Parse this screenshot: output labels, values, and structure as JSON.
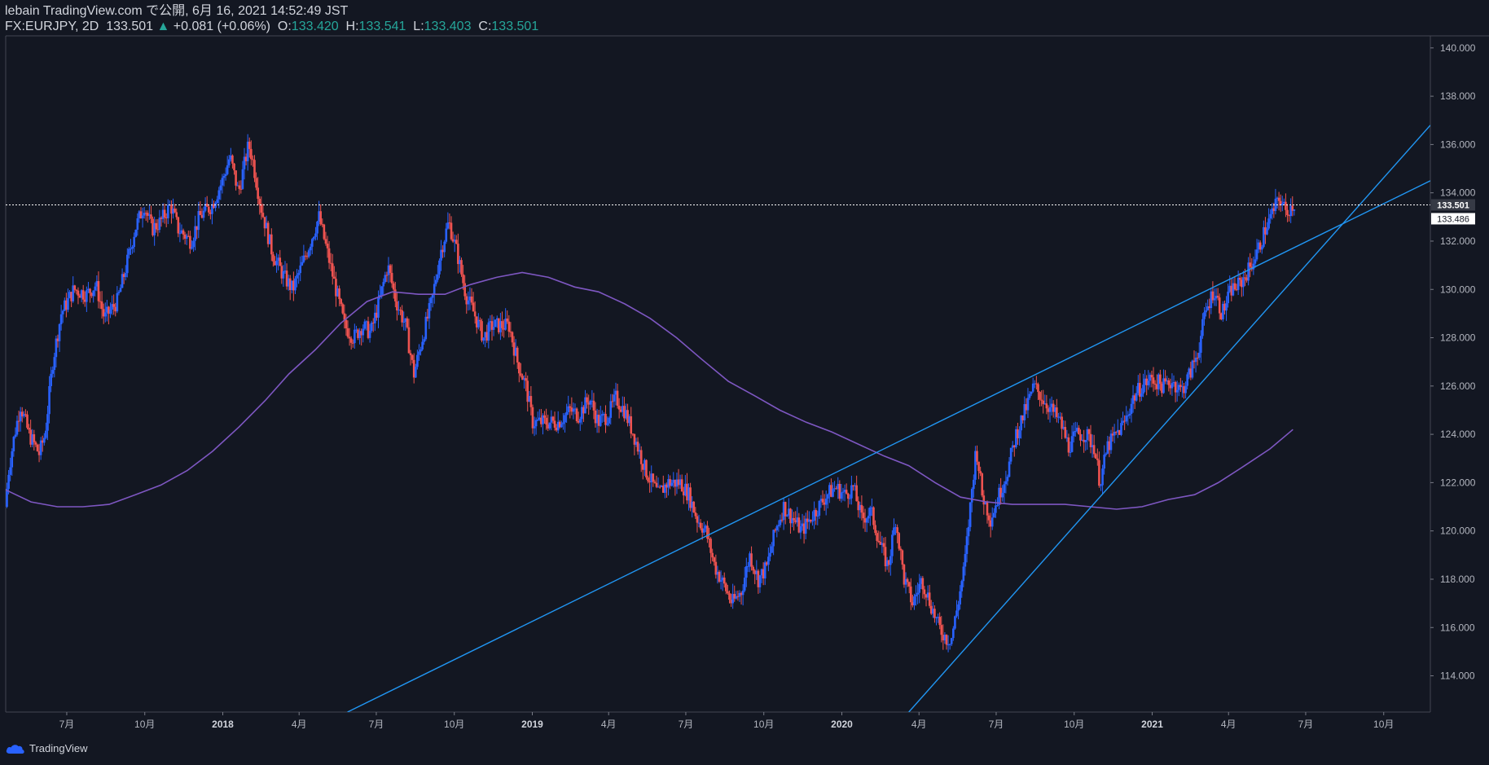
{
  "header": {
    "published": "lebain TradingView.com で公開, 6月 16, 2021 14:52:49 JST",
    "symbol": "FX:EURJPY, 2D",
    "last": "133.501",
    "change": "+0.081 (+0.06%)",
    "o_label": "O:",
    "o_value": "133.420",
    "h_label": "H:",
    "h_value": "133.541",
    "l_label": "L:",
    "l_value": "133.403",
    "c_label": "C:",
    "c_value": "133.501"
  },
  "brand": {
    "name": "TradingView",
    "icon": "tradingview-cloud-icon"
  },
  "colors": {
    "background": "#131722",
    "up": "#2962ff",
    "down": "#ef5350",
    "ma": "#7e57c2",
    "trendline": "#2196f3",
    "price_line": "#ffffff"
  },
  "chart_data": {
    "type": "candlestick",
    "symbol": "FX:EURJPY",
    "interval": "2D",
    "x_range": [
      "2017-04-20",
      "2021-11-25"
    ],
    "ylim": [
      112.5,
      140.5
    ],
    "y_ticks": [
      "114.000",
      "116.000",
      "118.000",
      "120.000",
      "122.000",
      "124.000",
      "126.000",
      "128.000",
      "130.000",
      "132.000",
      "134.000",
      "136.000",
      "138.000",
      "140.000"
    ],
    "x_ticks": [
      {
        "date": "2017-07-01",
        "label": "7月",
        "bold": false
      },
      {
        "date": "2017-10-01",
        "label": "10月",
        "bold": false
      },
      {
        "date": "2018-01-01",
        "label": "2018",
        "bold": true
      },
      {
        "date": "2018-04-01",
        "label": "4月",
        "bold": false
      },
      {
        "date": "2018-07-01",
        "label": "7月",
        "bold": false
      },
      {
        "date": "2018-10-01",
        "label": "10月",
        "bold": false
      },
      {
        "date": "2019-01-01",
        "label": "2019",
        "bold": true
      },
      {
        "date": "2019-04-01",
        "label": "4月",
        "bold": false
      },
      {
        "date": "2019-07-01",
        "label": "7月",
        "bold": false
      },
      {
        "date": "2019-10-01",
        "label": "10月",
        "bold": false
      },
      {
        "date": "2020-01-01",
        "label": "2020",
        "bold": true
      },
      {
        "date": "2020-04-01",
        "label": "4月",
        "bold": false
      },
      {
        "date": "2020-07-01",
        "label": "7月",
        "bold": false
      },
      {
        "date": "2020-10-01",
        "label": "10月",
        "bold": false
      },
      {
        "date": "2021-01-01",
        "label": "2021",
        "bold": true
      },
      {
        "date": "2021-04-01",
        "label": "4月",
        "bold": false
      },
      {
        "date": "2021-07-01",
        "label": "7月",
        "bold": false
      },
      {
        "date": "2021-10-01",
        "label": "10月",
        "bold": false
      }
    ],
    "price_anchors": [
      [
        "2017-04-20",
        121.0
      ],
      [
        "2017-04-24",
        122.5
      ],
      [
        "2017-05-01",
        124.0
      ],
      [
        "2017-05-08",
        125.2
      ],
      [
        "2017-05-18",
        124.0
      ],
      [
        "2017-05-30",
        123.2
      ],
      [
        "2017-06-06",
        124.0
      ],
      [
        "2017-06-15",
        127.0
      ],
      [
        "2017-06-25",
        129.0
      ],
      [
        "2017-07-10",
        130.0
      ],
      [
        "2017-07-25",
        129.8
      ],
      [
        "2017-08-05",
        130.2
      ],
      [
        "2017-08-15",
        128.8
      ],
      [
        "2017-08-30",
        129.5
      ],
      [
        "2017-09-10",
        131.0
      ],
      [
        "2017-09-20",
        132.5
      ],
      [
        "2017-10-01",
        133.5
      ],
      [
        "2017-10-10",
        132.5
      ],
      [
        "2017-10-20",
        132.8
      ],
      [
        "2017-11-01",
        133.5
      ],
      [
        "2017-11-10",
        132.5
      ],
      [
        "2017-11-25",
        132.0
      ],
      [
        "2017-12-05",
        133.0
      ],
      [
        "2017-12-20",
        133.5
      ],
      [
        "2018-01-01",
        134.5
      ],
      [
        "2018-01-10",
        135.5
      ],
      [
        "2018-01-20",
        134.0
      ],
      [
        "2018-02-01",
        136.0
      ],
      [
        "2018-02-05",
        135.5
      ],
      [
        "2018-02-10",
        134.5
      ],
      [
        "2018-02-15",
        133.5
      ],
      [
        "2018-03-01",
        131.5
      ],
      [
        "2018-03-15",
        130.5
      ],
      [
        "2018-03-25",
        130.0
      ],
      [
        "2018-04-05",
        131.0
      ],
      [
        "2018-04-15",
        132.0
      ],
      [
        "2018-04-25",
        133.0
      ],
      [
        "2018-05-05",
        131.5
      ],
      [
        "2018-05-15",
        130.0
      ],
      [
        "2018-05-25",
        128.5
      ],
      [
        "2018-06-05",
        128.0
      ],
      [
        "2018-06-15",
        128.5
      ],
      [
        "2018-06-25",
        128.2
      ],
      [
        "2018-07-05",
        129.5
      ],
      [
        "2018-07-15",
        131.0
      ],
      [
        "2018-07-25",
        129.5
      ],
      [
        "2018-08-05",
        128.5
      ],
      [
        "2018-08-15",
        126.5
      ],
      [
        "2018-08-25",
        128.0
      ],
      [
        "2018-09-05",
        129.5
      ],
      [
        "2018-09-15",
        131.5
      ],
      [
        "2018-09-25",
        132.8
      ],
      [
        "2018-10-05",
        131.5
      ],
      [
        "2018-10-15",
        129.8
      ],
      [
        "2018-10-25",
        129.0
      ],
      [
        "2018-11-05",
        128.0
      ],
      [
        "2018-11-15",
        128.5
      ],
      [
        "2018-11-25",
        128.5
      ],
      [
        "2018-12-05",
        128.5
      ],
      [
        "2018-12-15",
        127.0
      ],
      [
        "2018-12-25",
        126.0
      ],
      [
        "2019-01-02",
        124.5
      ],
      [
        "2019-01-10",
        124.5
      ],
      [
        "2019-01-20",
        124.5
      ],
      [
        "2019-02-01",
        124.5
      ],
      [
        "2019-02-15",
        125.0
      ],
      [
        "2019-02-25",
        124.8
      ],
      [
        "2019-03-10",
        125.5
      ],
      [
        "2019-03-20",
        124.5
      ],
      [
        "2019-04-01",
        124.8
      ],
      [
        "2019-04-10",
        125.5
      ],
      [
        "2019-04-20",
        125.0
      ],
      [
        "2019-05-01",
        124.0
      ],
      [
        "2019-05-15",
        122.5
      ],
      [
        "2019-05-30",
        121.5
      ],
      [
        "2019-06-10",
        122.0
      ],
      [
        "2019-06-25",
        122.0
      ],
      [
        "2019-07-05",
        121.5
      ],
      [
        "2019-07-15",
        120.5
      ],
      [
        "2019-07-25",
        120.0
      ],
      [
        "2019-08-05",
        118.5
      ],
      [
        "2019-08-15",
        117.8
      ],
      [
        "2019-08-25",
        117.0
      ],
      [
        "2019-09-05",
        117.5
      ],
      [
        "2019-09-15",
        119.0
      ],
      [
        "2019-09-25",
        118.0
      ],
      [
        "2019-10-05",
        118.5
      ],
      [
        "2019-10-15",
        120.0
      ],
      [
        "2019-10-25",
        121.0
      ],
      [
        "2019-11-05",
        120.5
      ],
      [
        "2019-11-15",
        120.0
      ],
      [
        "2019-11-25",
        120.5
      ],
      [
        "2019-12-05",
        121.0
      ],
      [
        "2019-12-15",
        121.5
      ],
      [
        "2019-12-25",
        121.8
      ],
      [
        "2020-01-05",
        121.5
      ],
      [
        "2020-01-15",
        121.8
      ],
      [
        "2020-01-25",
        120.5
      ],
      [
        "2020-02-05",
        120.8
      ],
      [
        "2020-02-15",
        119.5
      ],
      [
        "2020-02-25",
        118.5
      ],
      [
        "2020-03-05",
        120.5
      ],
      [
        "2020-03-15",
        118.0
      ],
      [
        "2020-03-25",
        117.0
      ],
      [
        "2020-04-05",
        118.0
      ],
      [
        "2020-04-15",
        117.0
      ],
      [
        "2020-04-25",
        116.0
      ],
      [
        "2020-05-05",
        115.5
      ],
      [
        "2020-05-10",
        115.6
      ],
      [
        "2020-05-15",
        116.5
      ],
      [
        "2020-05-25",
        118.5
      ],
      [
        "2020-06-01",
        121.0
      ],
      [
        "2020-06-08",
        123.5
      ],
      [
        "2020-06-15",
        121.5
      ],
      [
        "2020-06-25",
        120.5
      ],
      [
        "2020-07-05",
        121.5
      ],
      [
        "2020-07-15",
        122.5
      ],
      [
        "2020-07-25",
        124.0
      ],
      [
        "2020-08-05",
        125.0
      ],
      [
        "2020-08-15",
        126.0
      ],
      [
        "2020-08-25",
        125.5
      ],
      [
        "2020-09-05",
        125.0
      ],
      [
        "2020-09-15",
        124.5
      ],
      [
        "2020-09-25",
        123.5
      ],
      [
        "2020-10-05",
        124.0
      ],
      [
        "2020-10-15",
        124.0
      ],
      [
        "2020-10-25",
        123.5
      ],
      [
        "2020-11-01",
        122.0
      ],
      [
        "2020-11-10",
        123.5
      ],
      [
        "2020-11-20",
        124.0
      ],
      [
        "2020-11-30",
        124.5
      ],
      [
        "2020-12-10",
        125.5
      ],
      [
        "2020-12-20",
        126.0
      ],
      [
        "2021-01-01",
        126.3
      ],
      [
        "2021-01-15",
        126.0
      ],
      [
        "2021-01-25",
        126.2
      ],
      [
        "2021-02-05",
        125.8
      ],
      [
        "2021-02-15",
        126.5
      ],
      [
        "2021-02-25",
        127.5
      ],
      [
        "2021-03-05",
        129.0
      ],
      [
        "2021-03-15",
        130.0
      ],
      [
        "2021-03-25",
        129.0
      ],
      [
        "2021-04-05",
        130.0
      ],
      [
        "2021-04-15",
        130.2
      ],
      [
        "2021-04-25",
        130.8
      ],
      [
        "2021-05-05",
        131.5
      ],
      [
        "2021-05-15",
        132.5
      ],
      [
        "2021-05-25",
        133.3
      ],
      [
        "2021-06-01",
        133.8
      ],
      [
        "2021-06-08",
        133.2
      ],
      [
        "2021-06-16",
        133.5
      ]
    ],
    "series": [
      {
        "name": "",
        "type": "line",
        "data": [
          [
            "2017-04-20",
            121.7
          ],
          [
            "2017-05-20",
            121.2
          ],
          [
            "2017-06-20",
            121.0
          ],
          [
            "2017-07-20",
            121.0
          ],
          [
            "2017-08-20",
            121.1
          ],
          [
            "2017-09-20",
            121.5
          ],
          [
            "2017-10-20",
            121.9
          ],
          [
            "2017-11-20",
            122.5
          ],
          [
            "2017-12-20",
            123.3
          ],
          [
            "2018-01-20",
            124.3
          ],
          [
            "2018-02-20",
            125.4
          ],
          [
            "2018-03-20",
            126.5
          ],
          [
            "2018-04-20",
            127.5
          ],
          [
            "2018-05-20",
            128.6
          ],
          [
            "2018-06-20",
            129.5
          ],
          [
            "2018-07-20",
            129.9
          ],
          [
            "2018-08-20",
            129.8
          ],
          [
            "2018-09-20",
            129.8
          ],
          [
            "2018-10-20",
            130.2
          ],
          [
            "2018-11-20",
            130.5
          ],
          [
            "2018-12-20",
            130.7
          ],
          [
            "2019-01-20",
            130.5
          ],
          [
            "2019-02-20",
            130.1
          ],
          [
            "2019-03-20",
            129.9
          ],
          [
            "2019-04-20",
            129.4
          ],
          [
            "2019-05-20",
            128.8
          ],
          [
            "2019-06-20",
            128.0
          ],
          [
            "2019-07-20",
            127.1
          ],
          [
            "2019-08-20",
            126.2
          ],
          [
            "2019-09-20",
            125.6
          ],
          [
            "2019-10-20",
            125.0
          ],
          [
            "2019-11-20",
            124.5
          ],
          [
            "2019-12-20",
            124.1
          ],
          [
            "2020-01-20",
            123.6
          ],
          [
            "2020-02-20",
            123.1
          ],
          [
            "2020-03-20",
            122.7
          ],
          [
            "2020-04-20",
            122.0
          ],
          [
            "2020-05-20",
            121.4
          ],
          [
            "2020-06-20",
            121.2
          ],
          [
            "2020-07-20",
            121.1
          ],
          [
            "2020-08-20",
            121.1
          ],
          [
            "2020-09-20",
            121.1
          ],
          [
            "2020-10-20",
            121.0
          ],
          [
            "2020-11-20",
            120.9
          ],
          [
            "2020-12-20",
            121.0
          ],
          [
            "2021-01-20",
            121.3
          ],
          [
            "2021-02-20",
            121.5
          ],
          [
            "2021-03-20",
            122.0
          ],
          [
            "2021-04-20",
            122.7
          ],
          [
            "2021-05-20",
            123.4
          ],
          [
            "2021-06-16",
            124.2
          ]
        ]
      },
      {
        "name": "",
        "type": "trendline",
        "data": [
          [
            "2018-05-28",
            112.5
          ],
          [
            "2021-11-25",
            134.5
          ]
        ]
      },
      {
        "name": "",
        "type": "trendline",
        "data": [
          [
            "2020-03-20",
            112.5
          ],
          [
            "2021-11-25",
            136.8
          ]
        ]
      }
    ],
    "current_price": 133.501,
    "price_labels": [
      "133.501",
      "133.486"
    ]
  }
}
